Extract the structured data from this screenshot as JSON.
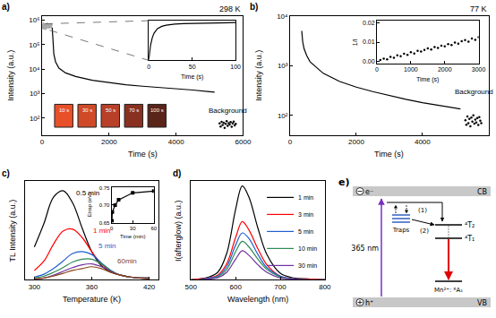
{
  "chart_data": [
    {
      "type": "line",
      "title": "a)",
      "xlabel": "Time (s)",
      "ylabel": "Intensity (a.u.)",
      "log": "y",
      "xlim": [
        0,
        6000
      ],
      "xticks": [
        0,
        2000,
        4000,
        6000
      ],
      "ylim": [
        20,
        1500000
      ],
      "yticks": [
        {
          "value": 100,
          "label": "10²"
        },
        {
          "value": 1000,
          "label": "10³"
        },
        {
          "value": 10000,
          "label": "10⁴"
        },
        {
          "value": 100000,
          "label": "10⁵"
        },
        {
          "value": 1000000,
          "label": "10⁶"
        }
      ],
      "annotations": [
        "298 K",
        "Background"
      ],
      "photo_labels": [
        "10 s",
        "30 s",
        "50 s",
        "70 s",
        "100 s"
      ],
      "series": [
        {
          "color": "#a8a8a8",
          "x": [
            0,
            50,
            100,
            150,
            200,
            250,
            300
          ],
          "values": [
            450000,
            600000,
            520000,
            620000,
            560000,
            610000,
            580000
          ]
        },
        {
          "color": "#000000",
          "x": [
            300,
            320,
            350,
            400,
            500,
            700,
            1000,
            1500,
            2000,
            2500,
            3000,
            3500,
            4000,
            4500,
            5000,
            5150
          ],
          "values": [
            500000,
            100000,
            40000,
            20000,
            11000,
            7000,
            5000,
            3500,
            2800,
            2300,
            2000,
            1800,
            1600,
            1400,
            1200,
            1150
          ]
        },
        {
          "color": "#000000",
          "type": "scatter",
          "x": [
            5300,
            5330,
            5360,
            5390,
            5420,
            5450,
            5480,
            5510,
            5540,
            5570,
            5600,
            5630,
            5660,
            5690,
            5720,
            5750,
            5780
          ],
          "values": [
            60,
            45,
            70,
            52,
            65,
            40,
            58,
            75,
            48,
            62,
            55,
            68,
            44,
            60,
            72,
            50,
            58
          ]
        }
      ]
    },
    {
      "type": "line",
      "xlabel": "Time (s)",
      "xlim": [
        0,
        100
      ],
      "xticks": [
        0,
        50,
        100
      ],
      "ylim": [
        0,
        1.05
      ],
      "yticks": [],
      "tick_labels": "x",
      "series": [
        {
          "color": "#000000",
          "x": [
            0,
            1,
            2,
            4,
            6,
            10,
            15,
            20,
            30,
            40,
            60,
            80,
            100
          ],
          "values": [
            0.02,
            0.2,
            0.4,
            0.6,
            0.72,
            0.84,
            0.9,
            0.93,
            0.96,
            0.97,
            0.98,
            0.99,
            1.0
          ]
        }
      ]
    },
    {
      "type": "line",
      "title": "b)",
      "xlabel": "Time (s)",
      "ylabel": "Intensity (a.u.)",
      "log": "y",
      "xlim": [
        0,
        6000
      ],
      "xticks": [
        0,
        2000,
        4000,
        6000
      ],
      "ylim": [
        40,
        10000
      ],
      "yticks": [
        {
          "value": 100,
          "label": "10²"
        },
        {
          "value": 1000,
          "label": "10³"
        },
        {
          "value": 10000,
          "label": "10⁴"
        }
      ],
      "annotations": [
        "77 K",
        "Background"
      ],
      "series": [
        {
          "color": "#000000",
          "x": [
            350,
            380,
            420,
            500,
            600,
            800,
            1000,
            1500,
            2000,
            2500,
            3000,
            3500,
            4000,
            4500,
            5000,
            5150
          ],
          "values": [
            5000,
            3000,
            2200,
            1600,
            1200,
            900,
            700,
            480,
            370,
            300,
            250,
            210,
            180,
            160,
            140,
            135
          ]
        },
        {
          "color": "#000000",
          "type": "scatter",
          "x": [
            5300,
            5330,
            5360,
            5390,
            5420,
            5450,
            5480,
            5510,
            5540,
            5570,
            5600,
            5630,
            5660,
            5690,
            5720,
            5750,
            5780
          ],
          "values": [
            80,
            65,
            95,
            70,
            85,
            60,
            90,
            75,
            100,
            68,
            82,
            72,
            88,
            64,
            92,
            78,
            70
          ]
        }
      ]
    },
    {
      "type": "scatter",
      "xlabel": "Time (s)",
      "ylabel": "1/I",
      "xlim": [
        0,
        3000
      ],
      "xticks": [
        0,
        1000,
        2000,
        3000
      ],
      "ylim": [
        -0.001,
        0.021
      ],
      "yticks": [
        {
          "value": 0,
          "label": "0.00"
        },
        0.01,
        0.02
      ],
      "series": [
        {
          "color": "#000000",
          "x": [
            100,
            200,
            300,
            400,
            500,
            600,
            700,
            800,
            900,
            1000,
            1100,
            1200,
            1300,
            1400,
            1500,
            1600,
            1700,
            1800,
            1900,
            2000,
            2100,
            2200,
            2300,
            2400,
            2500,
            2600,
            2700,
            2800,
            2900,
            3000
          ],
          "values": [
            0.0008,
            0.0015,
            0.0012,
            0.0025,
            0.002,
            0.0032,
            0.0028,
            0.004,
            0.0035,
            0.0048,
            0.0042,
            0.0055,
            0.0052,
            0.006,
            0.0068,
            0.0062,
            0.0075,
            0.007,
            0.0082,
            0.0078,
            0.009,
            0.0085,
            0.0098,
            0.0092,
            0.0105,
            0.011,
            0.0102,
            0.0118,
            0.0112,
            0.0125
          ]
        }
      ]
    },
    {
      "type": "line",
      "title": "c)",
      "xlabel": "Temperature (K)",
      "ylabel": "TL Intensity (a.u.)",
      "xlim": [
        290,
        430
      ],
      "xticks": [
        300,
        360,
        420
      ],
      "ylim": [
        0,
        1.05
      ],
      "yticks": [],
      "tick_labels": "x",
      "x": [
        300,
        310,
        320,
        330,
        340,
        350,
        360,
        370,
        380,
        390,
        400,
        410,
        420
      ],
      "annotations": [
        "0.5 min",
        "1 min",
        "5 min",
        "60min"
      ],
      "series": [
        {
          "color": "#000000",
          "values": [
            0.35,
            0.6,
            0.88,
            0.95,
            0.82,
            0.55,
            0.3,
            0.15,
            0.08,
            0.05,
            0.03,
            0.02,
            0.02
          ]
        },
        {
          "color": "#ff0000",
          "values": [
            0.1,
            0.2,
            0.38,
            0.52,
            0.54,
            0.45,
            0.3,
            0.17,
            0.09,
            0.05,
            0.03,
            0.02,
            0.02
          ]
        },
        {
          "color": "#1f5fd0",
          "values": [
            0.03,
            0.06,
            0.12,
            0.2,
            0.28,
            0.3,
            0.27,
            0.18,
            0.1,
            0.05,
            0.03,
            0.02,
            0.02
          ]
        },
        {
          "color": "#2e8b57",
          "values": [
            0.02,
            0.04,
            0.08,
            0.13,
            0.19,
            0.22,
            0.22,
            0.17,
            0.1,
            0.05,
            0.03,
            0.02,
            0.02
          ]
        },
        {
          "color": "#7030a0",
          "values": [
            0.01,
            0.02,
            0.05,
            0.09,
            0.13,
            0.16,
            0.17,
            0.14,
            0.09,
            0.05,
            0.03,
            0.02,
            0.01
          ]
        },
        {
          "color": "#8b4513",
          "values": [
            0.01,
            0.02,
            0.04,
            0.07,
            0.1,
            0.12,
            0.14,
            0.12,
            0.08,
            0.05,
            0.03,
            0.02,
            0.01
          ]
        }
      ]
    },
    {
      "type": "line",
      "marker": "square",
      "xlabel": "Time (min)",
      "ylabel": "Etrap (eV)",
      "xlim": [
        0,
        60
      ],
      "xticks": [
        0,
        30,
        60
      ],
      "ylim": [
        0.65,
        0.75
      ],
      "yticks": [
        0.65,
        {
          "value": 0.7,
          "label": "0.70"
        },
        0.75
      ],
      "series": [
        {
          "color": "#000000",
          "x": [
            0.5,
            1,
            5,
            10,
            30,
            60
          ],
          "values": [
            0.655,
            0.68,
            0.7,
            0.715,
            0.735,
            0.74
          ]
        }
      ]
    },
    {
      "type": "line",
      "title": "d)",
      "xlabel": "Wavelength (nm)",
      "ylabel": "I(afterglow) (a.u.)",
      "xlim": [
        500,
        800
      ],
      "xticks": [
        500,
        600,
        700,
        800
      ],
      "ylim": [
        0,
        1.05
      ],
      "yticks": [],
      "tick_labels": "x",
      "legend": "top right",
      "x": [
        500,
        520,
        540,
        560,
        580,
        600,
        615,
        630,
        650,
        670,
        700,
        730,
        760,
        800
      ],
      "series": [
        {
          "name": "1 min",
          "color": "#000000",
          "values": [
            0,
            0.01,
            0.03,
            0.08,
            0.28,
            0.75,
            1.0,
            0.88,
            0.55,
            0.27,
            0.07,
            0.02,
            0.01,
            0
          ]
        },
        {
          "name": "3 min",
          "color": "#ff0000",
          "values": [
            0,
            0.01,
            0.02,
            0.05,
            0.17,
            0.45,
            0.62,
            0.53,
            0.33,
            0.16,
            0.04,
            0.01,
            0.01,
            0
          ]
        },
        {
          "name": "5 min",
          "color": "#1f5fd0",
          "values": [
            0,
            0,
            0.02,
            0.04,
            0.14,
            0.37,
            0.5,
            0.44,
            0.27,
            0.13,
            0.04,
            0.01,
            0,
            0
          ]
        },
        {
          "name": "10 min",
          "color": "#2e8b57",
          "values": [
            0,
            0,
            0.01,
            0.03,
            0.11,
            0.3,
            0.41,
            0.35,
            0.22,
            0.11,
            0.03,
            0.01,
            0,
            0
          ]
        },
        {
          "name": "30 min",
          "color": "#7030a0",
          "values": [
            0,
            0,
            0.01,
            0.02,
            0.08,
            0.22,
            0.31,
            0.26,
            0.16,
            0.08,
            0.02,
            0.01,
            0,
            0
          ]
        }
      ]
    }
  ],
  "diagram": {
    "label": "e)",
    "cb": "CB",
    "vb": "VB",
    "electron": "e⁻",
    "hole": "h⁺",
    "excitation": "365 nm",
    "traps": "Traps",
    "paths": [
      "(1)",
      "(2)"
    ],
    "levels": [
      "⁴T₂",
      "⁴T₁"
    ],
    "ground": "Mn²⁺: ⁶A₁"
  }
}
